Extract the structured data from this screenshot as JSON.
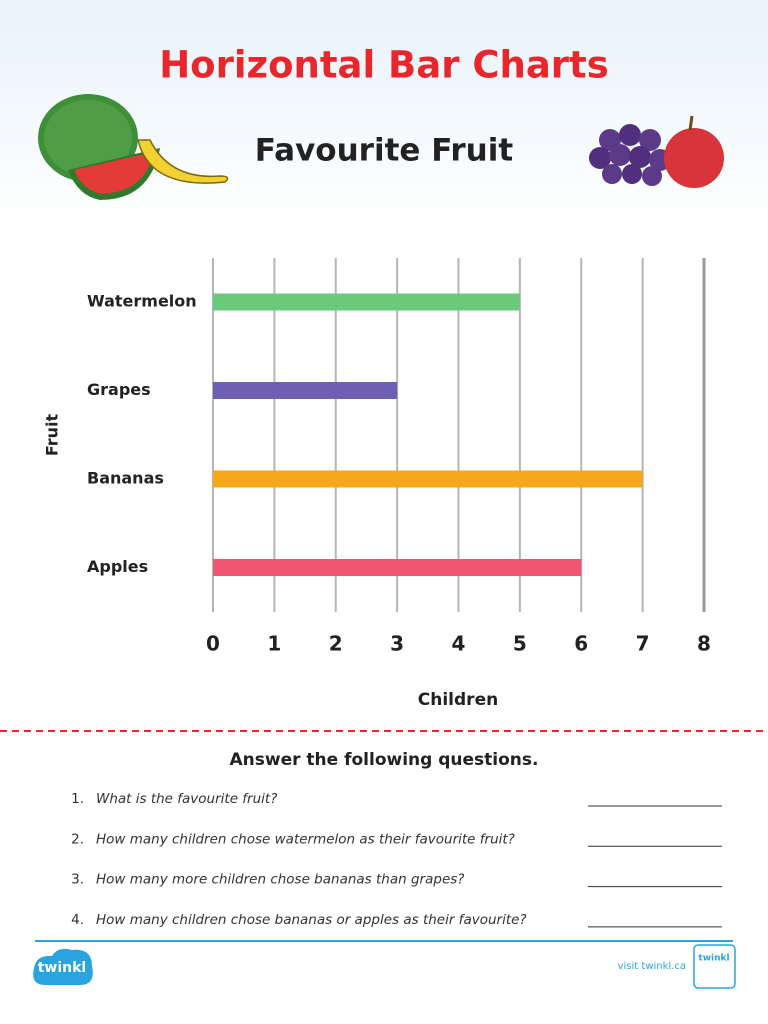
{
  "header": {
    "title": "Horizontal Bar Charts"
  },
  "chart_data": {
    "type": "bar",
    "orientation": "horizontal",
    "title": "Favourite Fruit",
    "x_label": "Children",
    "y_label": "Fruit",
    "categories": [
      "Watermelon",
      "Grapes",
      "Bananas",
      "Apples"
    ],
    "values": [
      5,
      3,
      7,
      6
    ],
    "colors": [
      "#6cc97c",
      "#6e5fb5",
      "#f6a81b",
      "#ef5470"
    ],
    "xlim": [
      0,
      8
    ],
    "xticks": [
      0,
      1,
      2,
      3,
      4,
      5,
      6,
      7,
      8
    ],
    "grid": true
  },
  "questions": {
    "heading": "Answer the following questions.",
    "items": [
      {
        "number": "1.",
        "text": "What is the favourite fruit?"
      },
      {
        "number": "2.",
        "text": "How many children chose watermelon as their favourite fruit?"
      },
      {
        "number": "3.",
        "text": "How many more children chose bananas than grapes?"
      },
      {
        "number": "4.",
        "text": "How many children chose bananas or apples as their favourite?"
      }
    ]
  },
  "footer": {
    "logo": "twinkl",
    "link": "visit twinkl.ca",
    "badge": "twinkl"
  }
}
